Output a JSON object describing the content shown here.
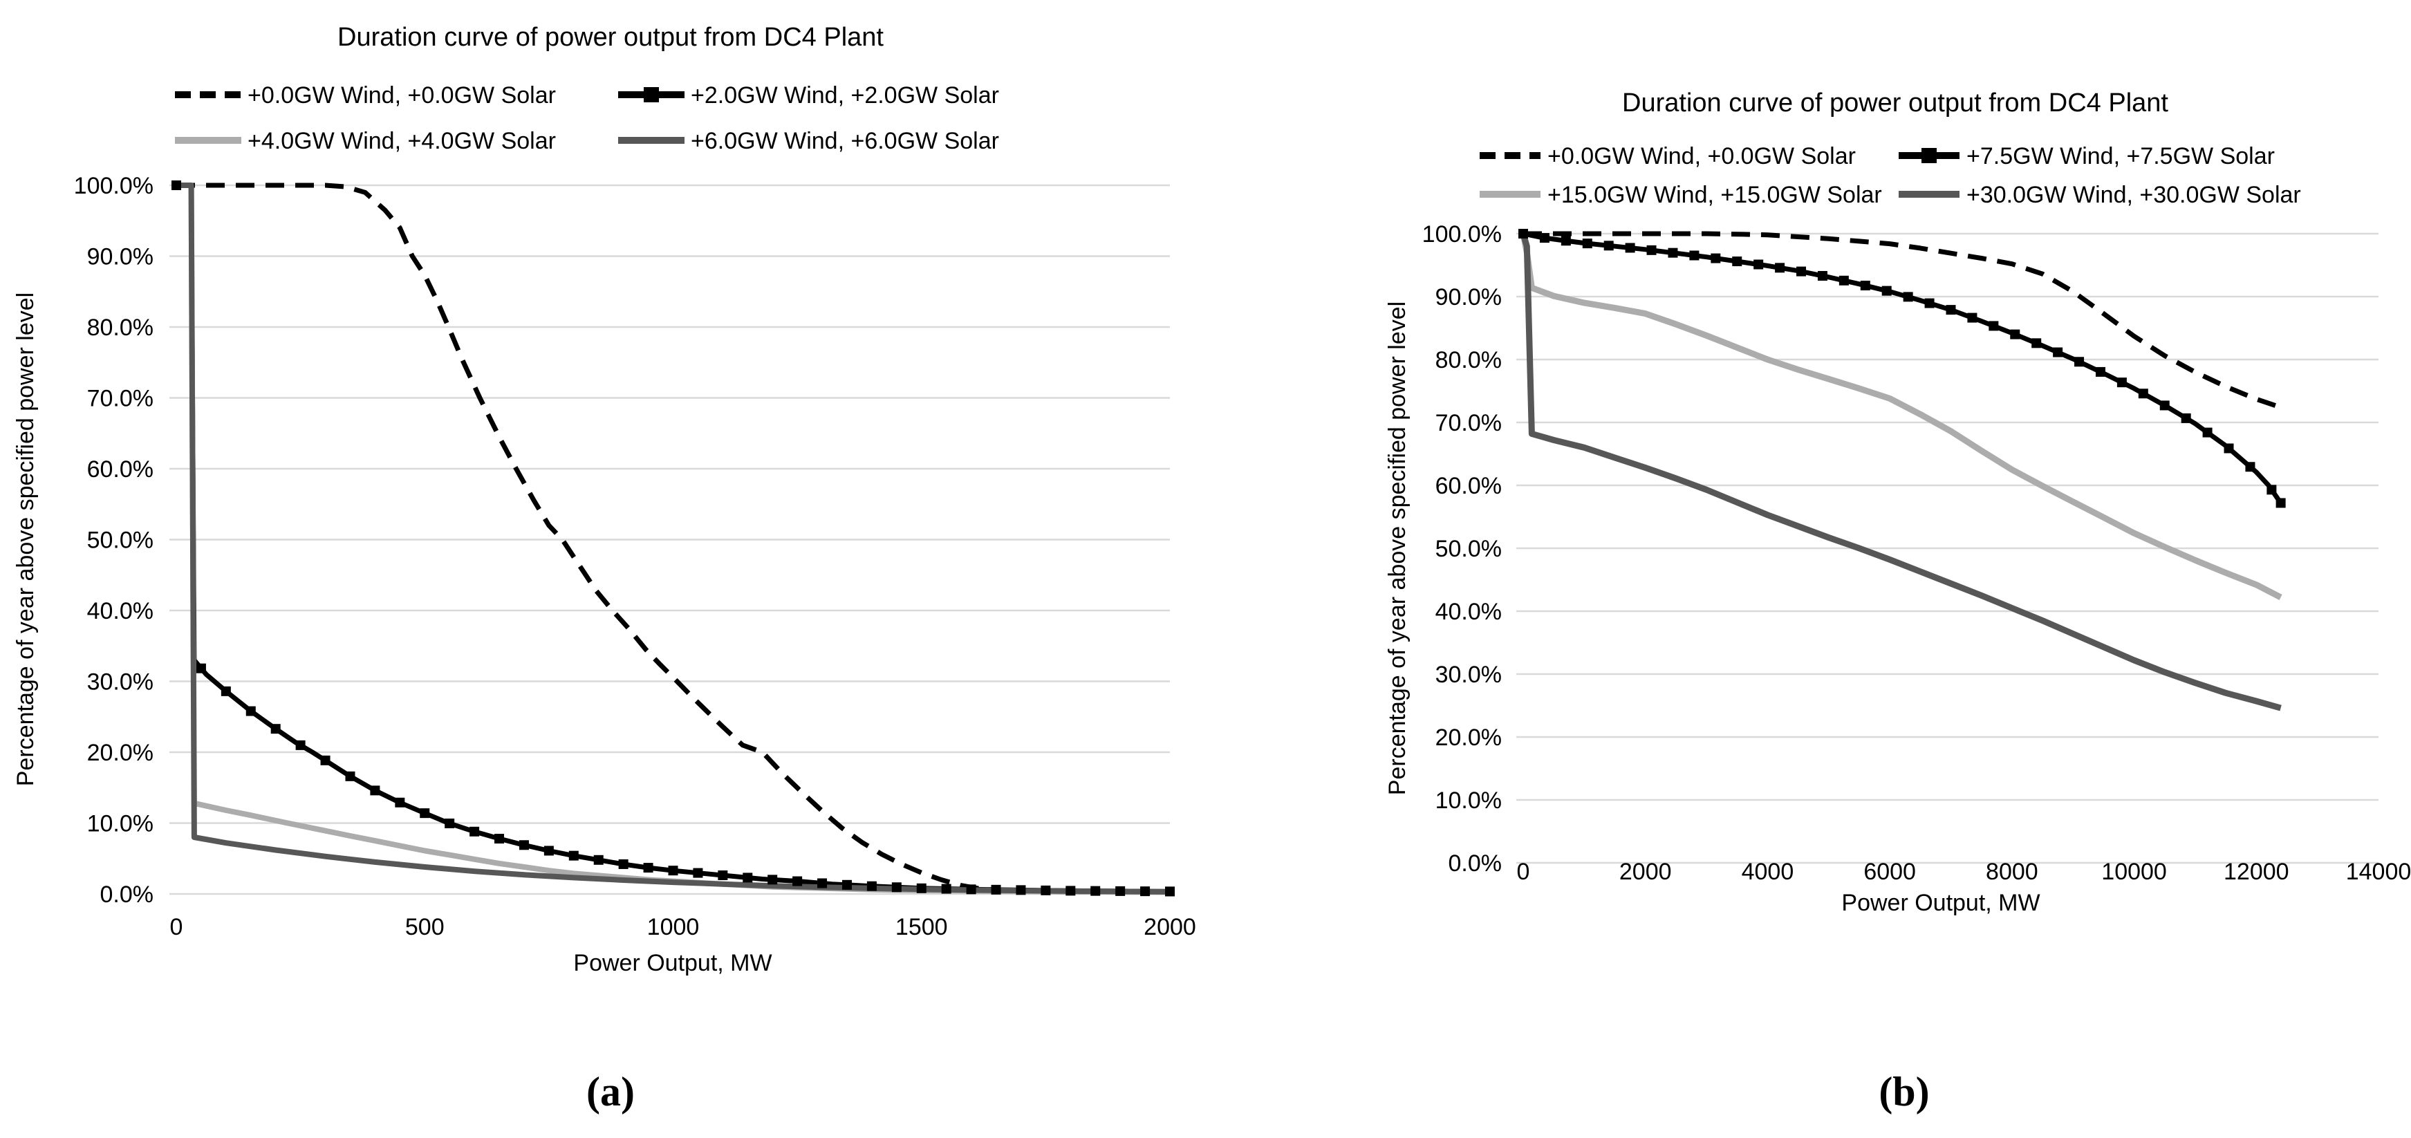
{
  "figure": {
    "caption_a": "(a)",
    "caption_b": "(b)"
  },
  "colors": {
    "series_black": "#000000",
    "series_light_gray": "#ACACAC",
    "series_dark_gray": "#575757",
    "gridline": "#D9D9D9",
    "text": "#000000",
    "background": "#FFFFFF"
  },
  "chart_data": [
    {
      "id": "chart-a",
      "type": "line",
      "title": "Duration curve of power output from DC4 Plant",
      "xlabel": "Power Output, MW",
      "ylabel": "Percentage of year above specified power level",
      "xlim": [
        0,
        2000
      ],
      "ylim": [
        0,
        100
      ],
      "grid": "horizontal",
      "legend_position": "top",
      "x_ticks": [
        0,
        500,
        1000,
        1500,
        2000
      ],
      "x_tick_labels": [
        "0",
        "500",
        "1000",
        "1500",
        "2000"
      ],
      "y_ticks": [
        0,
        10,
        20,
        30,
        40,
        50,
        60,
        70,
        80,
        90,
        100
      ],
      "y_tick_labels": [
        "0.0%",
        "10.0%",
        "20.0%",
        "30.0%",
        "40.0%",
        "50.0%",
        "60.0%",
        "70.0%",
        "80.0%",
        "90.0%",
        "100.0%"
      ],
      "series": [
        {
          "name": "+0.0GW Wind, +0.0GW Solar",
          "color": "#000000",
          "dash": true,
          "marker": false,
          "width": 7,
          "points": [
            [
              0,
              100
            ],
            [
              150,
              100
            ],
            [
              300,
              100
            ],
            [
              340,
              99.8
            ],
            [
              380,
              99
            ],
            [
              420,
              96.5
            ],
            [
              450,
              94
            ],
            [
              475,
              90
            ],
            [
              500,
              87.3
            ],
            [
              525,
              83.7
            ],
            [
              548,
              80
            ],
            [
              575,
              75.5
            ],
            [
              611,
              70
            ],
            [
              650,
              64.5
            ],
            [
              684,
              60
            ],
            [
              720,
              55.5
            ],
            [
              750,
              52
            ],
            [
              777,
              50
            ],
            [
              810,
              46.5
            ],
            [
              845,
              42.8
            ],
            [
              878,
              40
            ],
            [
              910,
              37.5
            ],
            [
              945,
              34.5
            ],
            [
              975,
              32.3
            ],
            [
              1008,
              30
            ],
            [
              1040,
              27.7
            ],
            [
              1075,
              25.3
            ],
            [
              1100,
              23.6
            ],
            [
              1140,
              21
            ],
            [
              1180,
              20
            ],
            [
              1220,
              17
            ],
            [
              1260,
              14.3
            ],
            [
              1300,
              11.7
            ],
            [
              1340,
              9.3
            ],
            [
              1380,
              7.3
            ],
            [
              1420,
              5.6
            ],
            [
              1460,
              4.2
            ],
            [
              1500,
              3
            ],
            [
              1540,
              2
            ],
            [
              1580,
              1.2
            ],
            [
              1620,
              0.7
            ],
            [
              1680,
              0.4
            ],
            [
              1750,
              0.3
            ],
            [
              1850,
              0.25
            ],
            [
              2000,
              0.25
            ]
          ]
        },
        {
          "name": "+2.0GW Wind, +2.0GW Solar",
          "color": "#000000",
          "dash": false,
          "marker": true,
          "width": 7,
          "points": [
            [
              0,
              100
            ],
            [
              30,
              100
            ],
            [
              36,
              33
            ],
            [
              60,
              31
            ],
            [
              100,
              28.6
            ],
            [
              150,
              25.8
            ],
            [
              200,
              23.3
            ],
            [
              240,
              21.4
            ],
            [
              274,
              20
            ],
            [
              310,
              18.4
            ],
            [
              350,
              16.6
            ],
            [
              400,
              14.6
            ],
            [
              450,
              12.9
            ],
            [
              500,
              11.4
            ],
            [
              548,
              10
            ],
            [
              600,
              8.8
            ],
            [
              650,
              7.8
            ],
            [
              700,
              6.9
            ],
            [
              750,
              6.1
            ],
            [
              800,
              5.4
            ],
            [
              850,
              4.8
            ],
            [
              900,
              4.2
            ],
            [
              950,
              3.7
            ],
            [
              1000,
              3.3
            ],
            [
              1060,
              2.9
            ],
            [
              1120,
              2.5
            ],
            [
              1180,
              2.1
            ],
            [
              1250,
              1.8
            ],
            [
              1320,
              1.4
            ],
            [
              1400,
              1.1
            ],
            [
              1500,
              0.8
            ],
            [
              1600,
              0.65
            ],
            [
              1700,
              0.55
            ],
            [
              1800,
              0.45
            ],
            [
              1900,
              0.4
            ],
            [
              2000,
              0.35
            ]
          ]
        },
        {
          "name": "+4.0GW Wind, +4.0GW Solar",
          "color": "#ACACAC",
          "dash": false,
          "marker": false,
          "width": 8,
          "points": [
            [
              0,
              100
            ],
            [
              30,
              100
            ],
            [
              36,
              12.8
            ],
            [
              100,
              11.8
            ],
            [
              150,
              11.1
            ],
            [
              224,
              10
            ],
            [
              280,
              9.2
            ],
            [
              350,
              8.2
            ],
            [
              400,
              7.5
            ],
            [
              450,
              6.8
            ],
            [
              500,
              6.1
            ],
            [
              550,
              5.5
            ],
            [
              600,
              4.9
            ],
            [
              650,
              4.3
            ],
            [
              700,
              3.8
            ],
            [
              750,
              3.3
            ],
            [
              800,
              2.9
            ],
            [
              850,
              2.6
            ],
            [
              900,
              2.3
            ],
            [
              950,
              2
            ],
            [
              1000,
              1.8
            ],
            [
              1100,
              1.4
            ],
            [
              1200,
              1
            ],
            [
              1300,
              0.8
            ],
            [
              1400,
              0.6
            ],
            [
              1500,
              0.5
            ],
            [
              1650,
              0.4
            ],
            [
              1800,
              0.3
            ],
            [
              2000,
              0.25
            ]
          ]
        },
        {
          "name": "+6.0GW Wind, +6.0GW Solar",
          "color": "#575757",
          "dash": false,
          "marker": false,
          "width": 8,
          "points": [
            [
              0,
              100
            ],
            [
              30,
              100
            ],
            [
              36,
              8
            ],
            [
              100,
              7.2
            ],
            [
              200,
              6.2
            ],
            [
              300,
              5.3
            ],
            [
              400,
              4.5
            ],
            [
              500,
              3.8
            ],
            [
              600,
              3.2
            ],
            [
              700,
              2.7
            ],
            [
              800,
              2.3
            ],
            [
              900,
              1.95
            ],
            [
              1000,
              1.65
            ],
            [
              1100,
              1.4
            ],
            [
              1200,
              1.15
            ],
            [
              1300,
              0.95
            ],
            [
              1400,
              0.8
            ],
            [
              1500,
              0.65
            ],
            [
              1600,
              0.55
            ],
            [
              1800,
              0.4
            ],
            [
              2000,
              0.3
            ]
          ]
        }
      ]
    },
    {
      "id": "chart-b",
      "type": "line",
      "title": "Duration curve of power output from DC4 Plant",
      "xlabel": "Power Output, MW",
      "ylabel": "Percentage of year above specified power level",
      "xlim": [
        0,
        14000
      ],
      "ylim": [
        0,
        100
      ],
      "grid": "horizontal",
      "legend_position": "top",
      "x_ticks": [
        0,
        2000,
        4000,
        6000,
        8000,
        10000,
        12000,
        14000
      ],
      "x_tick_labels": [
        "0",
        "2000",
        "4000",
        "6000",
        "8000",
        "10000",
        "12000",
        "14000"
      ],
      "y_ticks": [
        0,
        10,
        20,
        30,
        40,
        50,
        60,
        70,
        80,
        90,
        100
      ],
      "y_tick_labels": [
        "0.0%",
        "10.0%",
        "20.0%",
        "30.0%",
        "40.0%",
        "50.0%",
        "60.0%",
        "70.0%",
        "80.0%",
        "90.0%",
        "100.0%"
      ],
      "series": [
        {
          "name": "+0.0GW Wind, +0.0GW Solar",
          "color": "#000000",
          "dash": true,
          "marker": false,
          "width": 7,
          "points": [
            [
              0,
              100
            ],
            [
              1000,
              100
            ],
            [
              2000,
              100
            ],
            [
              3000,
              100
            ],
            [
              3600,
              99.9
            ],
            [
              4000,
              99.8
            ],
            [
              4500,
              99.5
            ],
            [
              5000,
              99.2
            ],
            [
              5500,
              98.8
            ],
            [
              6000,
              98.4
            ],
            [
              6500,
              97.7
            ],
            [
              7000,
              96.9
            ],
            [
              7500,
              96.1
            ],
            [
              8000,
              95.2
            ],
            [
              8500,
              93.6
            ],
            [
              9000,
              90.8
            ],
            [
              9500,
              87.3
            ],
            [
              10000,
              83.7
            ],
            [
              10500,
              80.6
            ],
            [
              11000,
              78
            ],
            [
              11500,
              75.7
            ],
            [
              12000,
              73.7
            ],
            [
              12400,
              72.4
            ]
          ]
        },
        {
          "name": "+7.5GW Wind, +7.5GW Solar",
          "color": "#000000",
          "dash": false,
          "marker": true,
          "width": 7,
          "points": [
            [
              0,
              100
            ],
            [
              300,
              99.4
            ],
            [
              600,
              99
            ],
            [
              1000,
              98.5
            ],
            [
              1500,
              98
            ],
            [
              2000,
              97.5
            ],
            [
              2500,
              96.9
            ],
            [
              3000,
              96.3
            ],
            [
              3500,
              95.6
            ],
            [
              4000,
              94.9
            ],
            [
              4500,
              94.1
            ],
            [
              5000,
              93.1
            ],
            [
              5500,
              92
            ],
            [
              6000,
              90.8
            ],
            [
              6500,
              89.4
            ],
            [
              7000,
              87.9
            ],
            [
              7500,
              86.1
            ],
            [
              8000,
              84.2
            ],
            [
              8500,
              82.2
            ],
            [
              9000,
              80.1
            ],
            [
              9500,
              77.8
            ],
            [
              10000,
              75.4
            ],
            [
              10500,
              72.7
            ],
            [
              11000,
              69.8
            ],
            [
              11500,
              66.3
            ],
            [
              12000,
              62.1
            ],
            [
              12200,
              60
            ],
            [
              12400,
              57.2
            ]
          ]
        },
        {
          "name": "+15.0GW Wind, +15.0GW Solar",
          "color": "#ACACAC",
          "dash": false,
          "marker": false,
          "width": 9,
          "points": [
            [
              0,
              100
            ],
            [
              60,
              97
            ],
            [
              140,
              91.4
            ],
            [
              500,
              90.1
            ],
            [
              1000,
              89
            ],
            [
              1500,
              88.2
            ],
            [
              2000,
              87.3
            ],
            [
              2500,
              85.6
            ],
            [
              3000,
              83.8
            ],
            [
              3500,
              81.9
            ],
            [
              4000,
              80
            ],
            [
              4500,
              78.4
            ],
            [
              5000,
              76.9
            ],
            [
              5500,
              75.4
            ],
            [
              6000,
              73.8
            ],
            [
              6500,
              71.3
            ],
            [
              7000,
              68.6
            ],
            [
              7500,
              65.5
            ],
            [
              8000,
              62.5
            ],
            [
              8500,
              59.9
            ],
            [
              9000,
              57.4
            ],
            [
              9500,
              54.9
            ],
            [
              10000,
              52.4
            ],
            [
              10500,
              50.2
            ],
            [
              11000,
              48.1
            ],
            [
              11500,
              46.1
            ],
            [
              12000,
              44.2
            ],
            [
              12400,
              42.2
            ]
          ]
        },
        {
          "name": "+30.0GW Wind, +30.0GW Solar",
          "color": "#575757",
          "dash": false,
          "marker": false,
          "width": 9,
          "points": [
            [
              0,
              100
            ],
            [
              60,
              98
            ],
            [
              140,
              68.2
            ],
            [
              500,
              67.2
            ],
            [
              1000,
              66
            ],
            [
              1500,
              64.4
            ],
            [
              2000,
              62.8
            ],
            [
              2500,
              61.1
            ],
            [
              3000,
              59.3
            ],
            [
              3500,
              57.3
            ],
            [
              4000,
              55.3
            ],
            [
              4500,
              53.5
            ],
            [
              5000,
              51.7
            ],
            [
              5500,
              50
            ],
            [
              6000,
              48.2
            ],
            [
              6500,
              46.3
            ],
            [
              7000,
              44.4
            ],
            [
              7500,
              42.5
            ],
            [
              8000,
              40.5
            ],
            [
              8500,
              38.5
            ],
            [
              9000,
              36.4
            ],
            [
              9500,
              34.3
            ],
            [
              10000,
              32.2
            ],
            [
              10500,
              30.3
            ],
            [
              11000,
              28.6
            ],
            [
              11500,
              27
            ],
            [
              12000,
              25.7
            ],
            [
              12400,
              24.6
            ]
          ]
        }
      ]
    }
  ]
}
